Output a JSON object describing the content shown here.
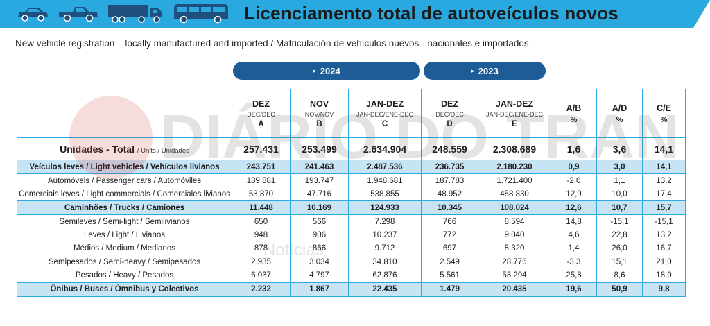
{
  "header": {
    "title": "Licenciamento total de autoveículos novos",
    "icons": [
      "car-icon",
      "pickup-truck-icon",
      "semi-truck-icon",
      "bus-icon"
    ],
    "colors": {
      "banner": "#29a9df",
      "pill": "#1e5c97",
      "group_row": "#c7e4f5",
      "border": "#29a9df"
    }
  },
  "subtitle": "New vehicle registration – locally manufactured and imported / Matriculación de vehículos nuevos - nacionales e importados",
  "year_tabs": [
    {
      "label": "2024"
    },
    {
      "label": "2023"
    }
  ],
  "columns": [
    {
      "top": "DEZ",
      "sub": "DEC/DEC",
      "letter": "A"
    },
    {
      "top": "NOV",
      "sub": "NOV/NOV",
      "letter": "B"
    },
    {
      "top": "JAN-DEZ",
      "sub": "JAN-DEC/ENE-DEC",
      "letter": "C"
    },
    {
      "top": "DEZ",
      "sub": "DEC/DEC",
      "letter": "D"
    },
    {
      "top": "JAN-DEZ",
      "sub": "JAN-DEC/ENE-DEC",
      "letter": "E"
    },
    {
      "top": "A/B",
      "sub": "%"
    },
    {
      "top": "A/D",
      "sub": "%"
    },
    {
      "top": "C/E",
      "sub": "%"
    }
  ],
  "total": {
    "label": "Unidades - Total",
    "note": "/ Units / Unidades",
    "values": [
      "257.431",
      "253.499",
      "2.634.904",
      "248.559",
      "2.308.689",
      "1,6",
      "3,6",
      "14,1"
    ]
  },
  "rows": [
    {
      "kind": "group",
      "label": "Veículos leves / Light vehicles / Vehículos livianos",
      "values": [
        "243.751",
        "241.463",
        "2.487.536",
        "236.735",
        "2.180.230",
        "0,9",
        "3,0",
        "14,1"
      ]
    },
    {
      "kind": "sub",
      "label": "Automóveis / Passenger cars / Automóviles",
      "values": [
        "189.881",
        "193.747",
        "1.948.681",
        "187.783",
        "1.721.400",
        "-2,0",
        "1,1",
        "13,2"
      ]
    },
    {
      "kind": "sub",
      "label": "Comerciais leves / Light commercials / Comerciales livianos",
      "values": [
        "53.870",
        "47.716",
        "538.855",
        "48.952",
        "458.830",
        "12,9",
        "10,0",
        "17,4"
      ]
    },
    {
      "kind": "group",
      "label": "Caminhões / Trucks / Camiones",
      "values": [
        "11.448",
        "10.169",
        "124.933",
        "10.345",
        "108.024",
        "12,6",
        "10,7",
        "15,7"
      ]
    },
    {
      "kind": "sub",
      "label": "Semileves / Semi-light / Semilivianos",
      "values": [
        "650",
        "566",
        "7.298",
        "766",
        "8.594",
        "14,8",
        "-15,1",
        "-15,1"
      ]
    },
    {
      "kind": "sub",
      "label": "Leves / Light / Livianos",
      "values": [
        "948",
        "906",
        "10.237",
        "772",
        "9.040",
        "4,6",
        "22,8",
        "13,2"
      ]
    },
    {
      "kind": "sub",
      "label": "Médios / Medium / Medianos",
      "values": [
        "878",
        "866",
        "9.712",
        "697",
        "8.320",
        "1,4",
        "26,0",
        "16,7"
      ]
    },
    {
      "kind": "sub",
      "label": "Semipesados / Semi-heavy / Semipesados",
      "values": [
        "2.935",
        "3.034",
        "34.810",
        "2.549",
        "28.776",
        "-3,3",
        "15,1",
        "21,0"
      ]
    },
    {
      "kind": "sub",
      "label": "Pesados / Heavy / Pesados",
      "values": [
        "6.037",
        "4.797",
        "62.876",
        "5.561",
        "53.294",
        "25,8",
        "8,6",
        "18,0"
      ]
    },
    {
      "kind": "group",
      "label": "Ônibus / Buses / Ómnibus y Colectivos",
      "values": [
        "2.232",
        "1.867",
        "22.435",
        "1.479",
        "20.435",
        "19,6",
        "50,9",
        "9,8"
      ]
    }
  ],
  "watermark": {
    "big": "DIÁRIO DO TRANSPORTE",
    "small": "Notícias"
  }
}
